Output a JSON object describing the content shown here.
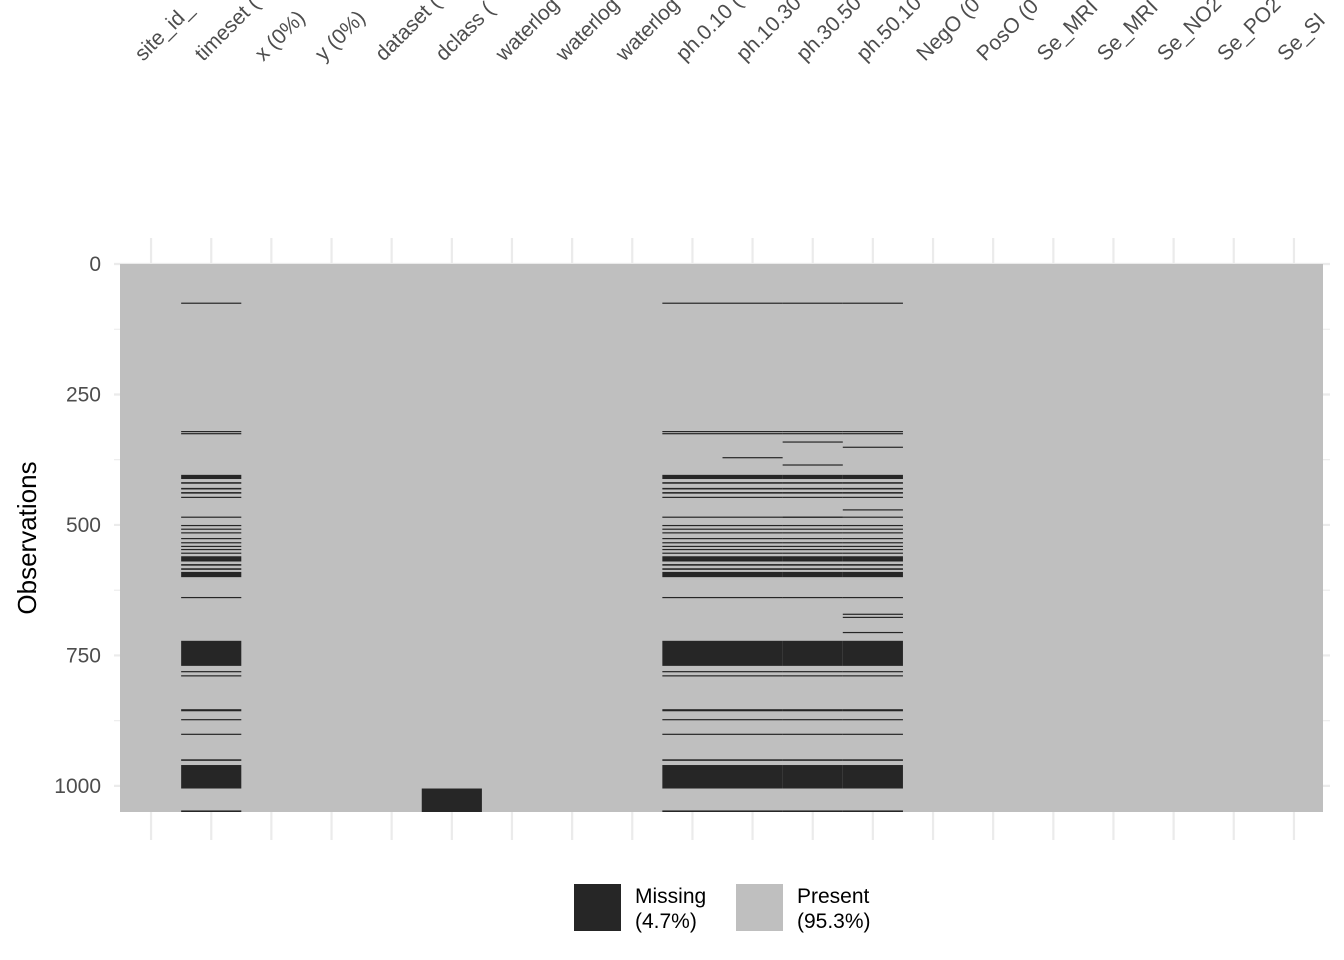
{
  "chart_data": {
    "type": "heatmap",
    "title": "",
    "xlabel": "",
    "ylabel": "Observations",
    "n_observations": 1050,
    "y_ticks": [
      0,
      250,
      500,
      750,
      1000
    ],
    "columns": [
      "site_id_",
      "timeset (",
      "x (0%)",
      "y (0%)",
      "dataset (",
      "dclass (",
      "waterlog",
      "waterlog",
      "waterlog",
      "ph.0.10 (",
      "ph.10.30",
      "ph.30.50",
      "ph.50.10",
      "NegO (0",
      "PosO (0",
      "Se_MRI",
      "Se_MRI",
      "Se_NO2",
      "Se_PO2",
      "Se_SI"
    ],
    "missing_blocks": [
      {
        "columns": [
          1,
          9,
          10,
          11,
          12
        ],
        "rows": [
          [
            74,
            76
          ],
          [
            320,
            322
          ],
          [
            324,
            325
          ],
          [
            404,
            412
          ],
          [
            418,
            421
          ],
          [
            429,
            432
          ],
          [
            437,
            440
          ],
          [
            446,
            448
          ],
          [
            484,
            486
          ],
          [
            500,
            502
          ],
          [
            507,
            509
          ],
          [
            514,
            516
          ],
          [
            525,
            527
          ],
          [
            533,
            535
          ],
          [
            540,
            542
          ],
          [
            546,
            548
          ],
          [
            553,
            555
          ],
          [
            560,
            570
          ],
          [
            575,
            578
          ],
          [
            583,
            586
          ],
          [
            590,
            600
          ],
          [
            638,
            640
          ],
          [
            722,
            770
          ],
          [
            780,
            782
          ],
          [
            788,
            790
          ],
          [
            853,
            857
          ],
          [
            872,
            874
          ],
          [
            900,
            902
          ],
          [
            949,
            952
          ],
          [
            960,
            1005
          ],
          [
            1047,
            1050
          ]
        ]
      },
      {
        "columns": [
          5
        ],
        "rows": [
          [
            1005,
            1050
          ]
        ]
      },
      {
        "columns": [
          10
        ],
        "rows": [
          [
            370,
            372
          ]
        ]
      },
      {
        "columns": [
          11
        ],
        "rows": [
          [
            340,
            342
          ],
          [
            384,
            386
          ],
          [
            484,
            486
          ]
        ]
      },
      {
        "columns": [
          12
        ],
        "rows": [
          [
            350,
            352
          ],
          [
            470,
            472
          ],
          [
            670,
            672
          ],
          [
            676,
            678
          ],
          [
            705,
            707
          ]
        ]
      }
    ],
    "legend": {
      "position": "bottom",
      "items": [
        {
          "label": "Missing",
          "percent": "(4.7%)",
          "color": "#262626"
        },
        {
          "label": "Present",
          "percent": "(95.3%)",
          "color": "#bfbfbf"
        }
      ]
    },
    "colors": {
      "present": "#bfbfbf",
      "missing": "#262626",
      "grid": "#ebebeb"
    }
  }
}
